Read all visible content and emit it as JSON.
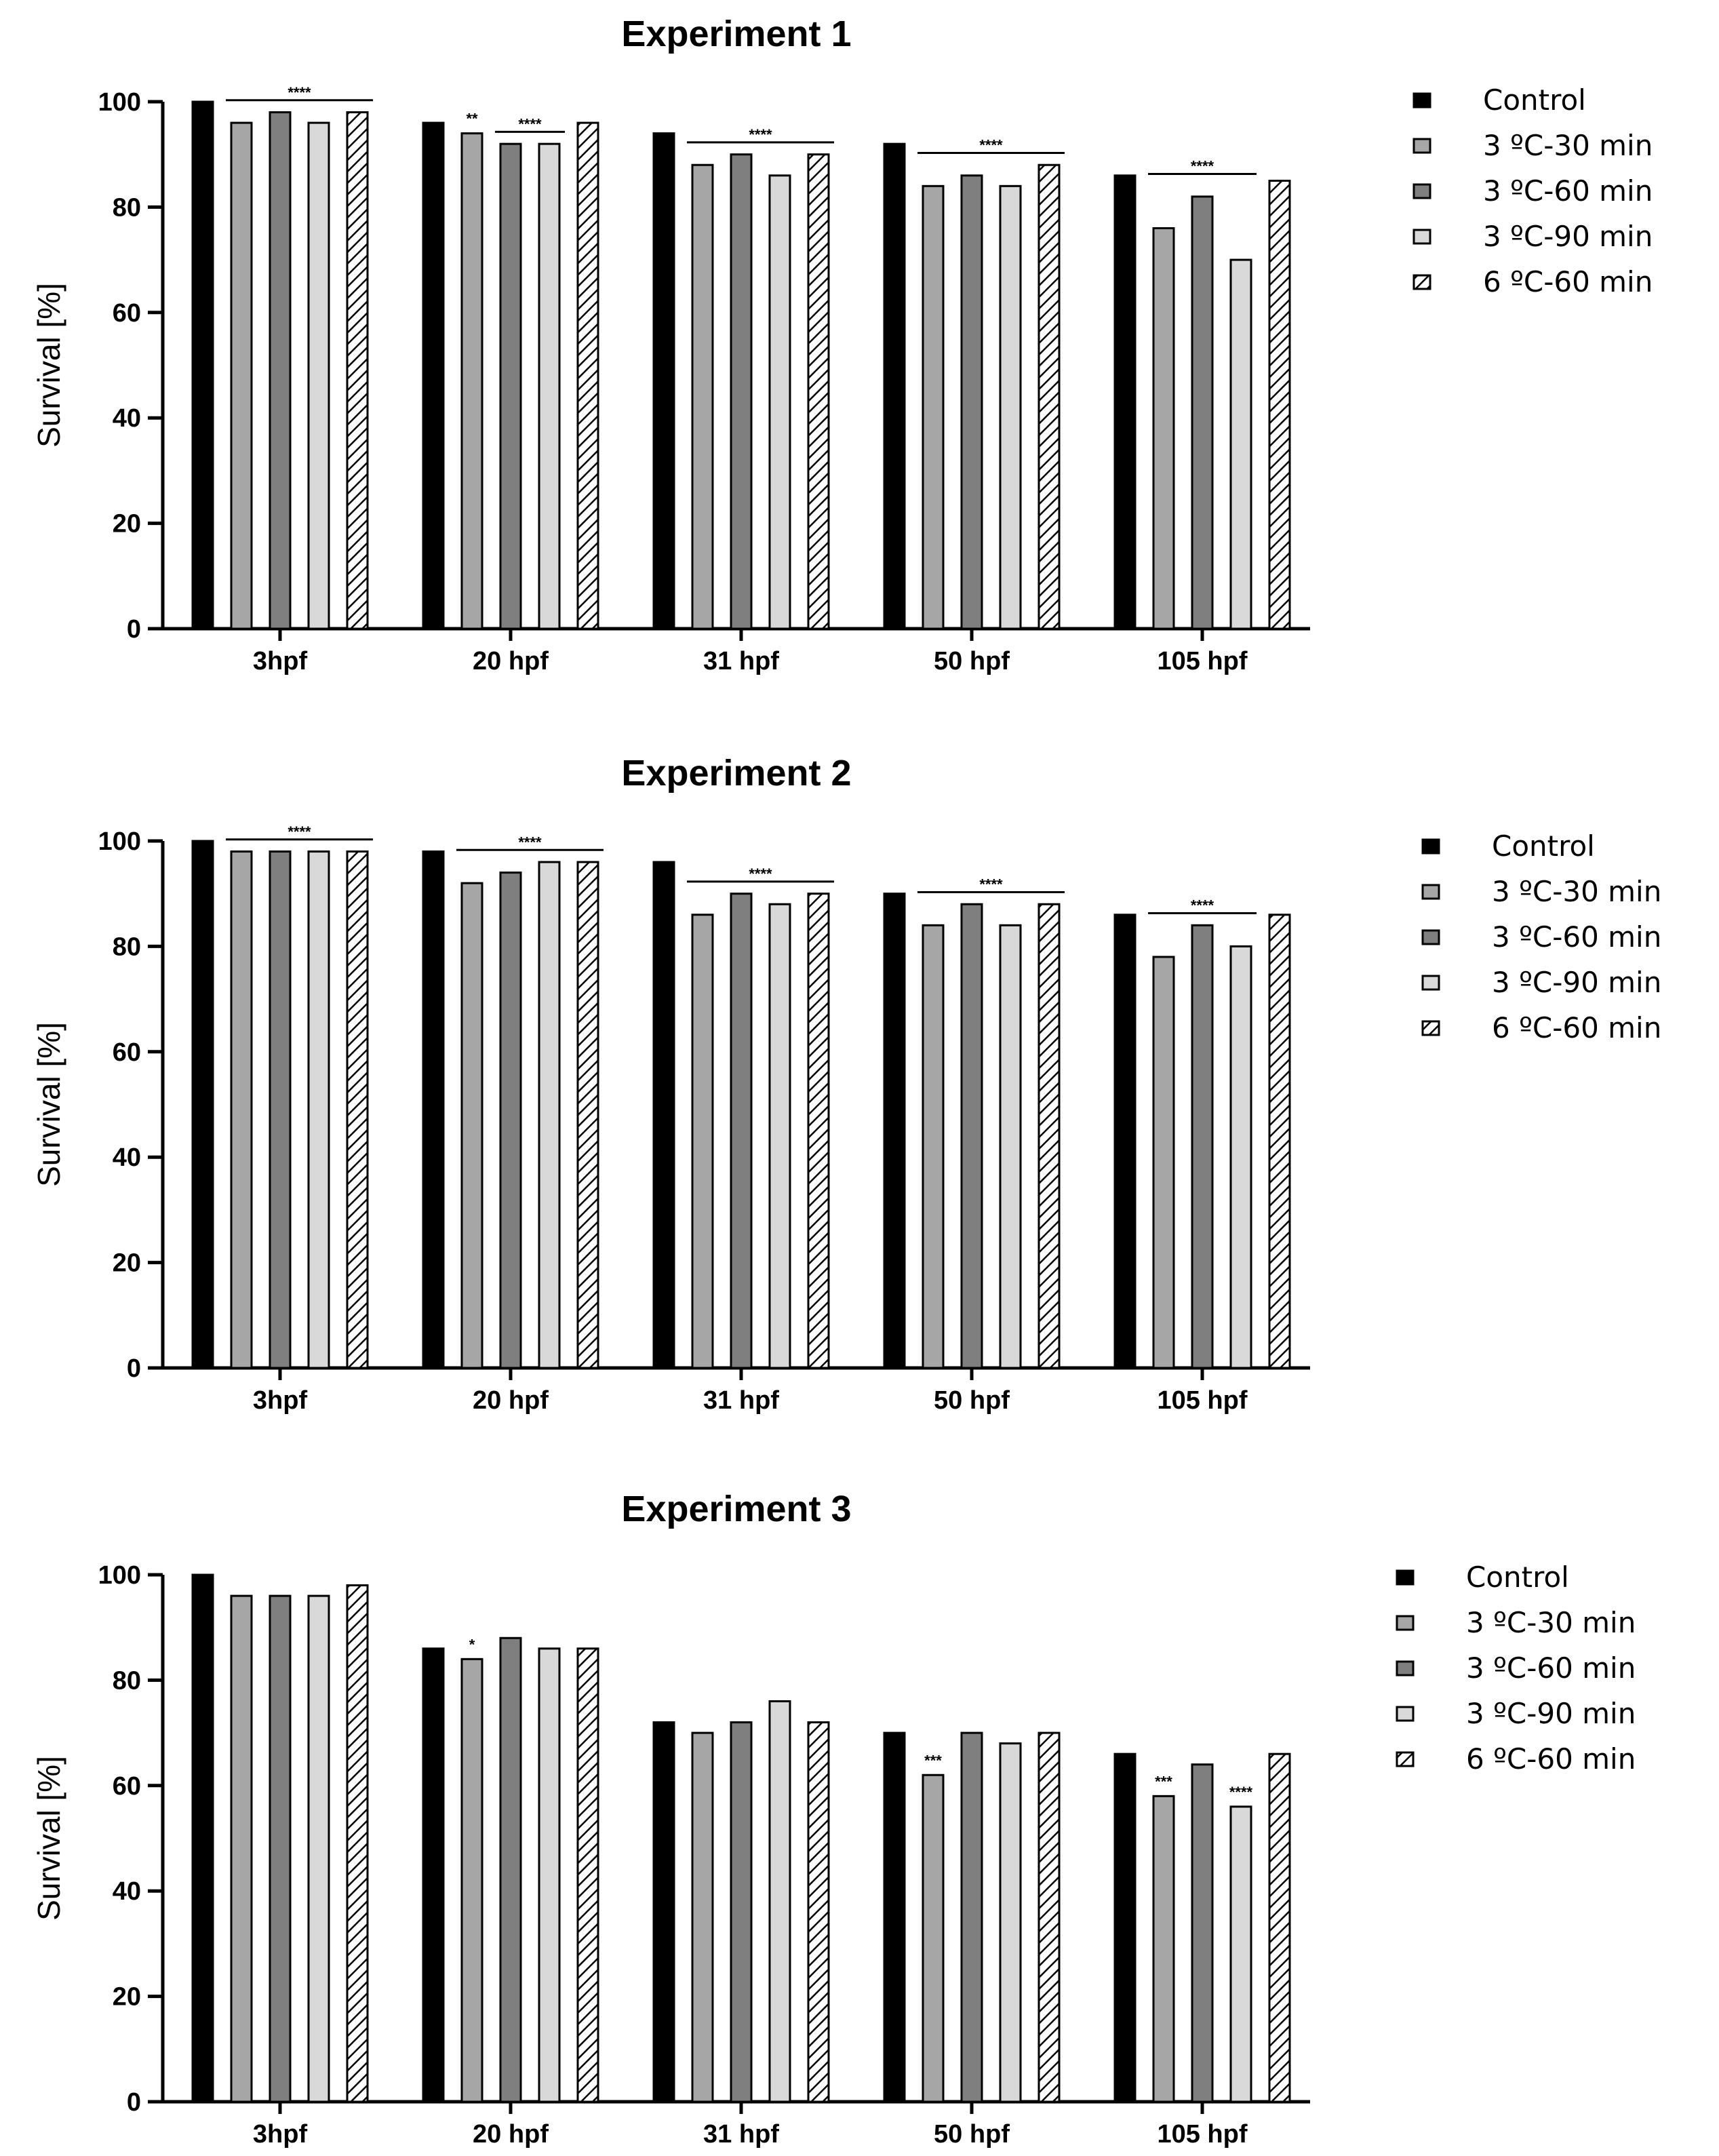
{
  "chart_data": [
    {
      "type": "bar",
      "title": "Experiment 1",
      "xlabel": "",
      "ylabel": "Survival [%]",
      "ylim": [
        0,
        100
      ],
      "yticks": [
        "0",
        "20",
        "40",
        "60",
        "80",
        "100"
      ],
      "categories": [
        "3hpf",
        "20 hpf",
        "31 hpf",
        "50 hpf",
        "105 hpf"
      ],
      "series": [
        {
          "name": "Control",
          "values": [
            100,
            96,
            94,
            92,
            86
          ]
        },
        {
          "name": "3 ºC-30 min",
          "values": [
            96,
            94,
            88,
            84,
            76
          ]
        },
        {
          "name": "3 ºC-60 min",
          "values": [
            98,
            92,
            90,
            86,
            82
          ]
        },
        {
          "name": "3 ºC-90 min",
          "values": [
            96,
            92,
            86,
            84,
            70
          ]
        },
        {
          "name": "6 ºC-60 min",
          "values": [
            98,
            96,
            90,
            88,
            85
          ]
        }
      ],
      "annotations": [
        {
          "label": "****",
          "category": 0,
          "from": 1,
          "to": 4,
          "level": 99
        },
        {
          "label": "**",
          "category": 1,
          "from": 1,
          "to": 1,
          "level": 94
        },
        {
          "label": "****",
          "category": 1,
          "from": 2,
          "to": 3,
          "level": 93
        },
        {
          "label": "****",
          "category": 2,
          "from": 1,
          "to": 4,
          "level": 91
        },
        {
          "label": "****",
          "category": 3,
          "from": 1,
          "to": 4,
          "level": 89
        },
        {
          "label": "****",
          "category": 4,
          "from": 1,
          "to": 3,
          "level": 85
        }
      ],
      "legend": "right"
    },
    {
      "type": "bar",
      "title": "Experiment 2",
      "xlabel": "",
      "ylabel": "Survival [%]",
      "ylim": [
        0,
        100
      ],
      "yticks": [
        "0",
        "20",
        "40",
        "60",
        "80",
        "100"
      ],
      "categories": [
        "3hpf",
        "20 hpf",
        "31 hpf",
        "50 hpf",
        "105 hpf"
      ],
      "series": [
        {
          "name": "Control",
          "values": [
            100,
            98,
            96,
            90,
            86
          ]
        },
        {
          "name": "3 ºC-30 min",
          "values": [
            98,
            92,
            86,
            84,
            78
          ]
        },
        {
          "name": "3 ºC-60 min",
          "values": [
            98,
            94,
            90,
            88,
            84
          ]
        },
        {
          "name": "3 ºC-90 min",
          "values": [
            98,
            96,
            88,
            84,
            80
          ]
        },
        {
          "name": "6 ºC-60 min",
          "values": [
            98,
            96,
            90,
            88,
            86
          ]
        }
      ],
      "annotations": [
        {
          "label": "****",
          "category": 0,
          "from": 1,
          "to": 4,
          "level": 99
        },
        {
          "label": "****",
          "category": 1,
          "from": 1,
          "to": 4,
          "level": 97
        },
        {
          "label": "****",
          "category": 2,
          "from": 1,
          "to": 4,
          "level": 91
        },
        {
          "label": "****",
          "category": 3,
          "from": 1,
          "to": 4,
          "level": 89
        },
        {
          "label": "****",
          "category": 4,
          "from": 1,
          "to": 3,
          "level": 85
        }
      ],
      "legend": "right"
    },
    {
      "type": "bar",
      "title": "Experiment 3",
      "xlabel": "",
      "ylabel": "Survival [%]",
      "ylim": [
        0,
        100
      ],
      "yticks": [
        "0",
        "20",
        "40",
        "60",
        "80",
        "100"
      ],
      "categories": [
        "3hpf",
        "20 hpf",
        "31 hpf",
        "50 hpf",
        "105 hpf"
      ],
      "series": [
        {
          "name": "Control",
          "values": [
            100,
            86,
            72,
            70,
            66
          ]
        },
        {
          "name": "3 ºC-30 min",
          "values": [
            96,
            84,
            70,
            62,
            58
          ]
        },
        {
          "name": "3 ºC-60 min",
          "values": [
            96,
            88,
            72,
            70,
            64
          ]
        },
        {
          "name": "3 ºC-90 min",
          "values": [
            96,
            86,
            76,
            68,
            56
          ]
        },
        {
          "name": "6 ºC-60 min",
          "values": [
            98,
            86,
            72,
            70,
            66
          ]
        }
      ],
      "annotations": [
        {
          "label": "*",
          "category": 1,
          "from": 1,
          "to": 1,
          "level": 84
        },
        {
          "label": "***",
          "category": 3,
          "from": 1,
          "to": 1,
          "level": 62
        },
        {
          "label": "***",
          "category": 4,
          "from": 1,
          "to": 1,
          "level": 58
        },
        {
          "label": "****",
          "category": 4,
          "from": 3,
          "to": 3,
          "level": 56
        }
      ],
      "legend": "right"
    }
  ],
  "styles": {
    "fills": [
      "#000000",
      "#a6a6a6",
      "#7f7f7f",
      "#d9d9d9",
      "#ffffff"
    ],
    "hatched_series": 4,
    "axis_color": "#000000"
  }
}
